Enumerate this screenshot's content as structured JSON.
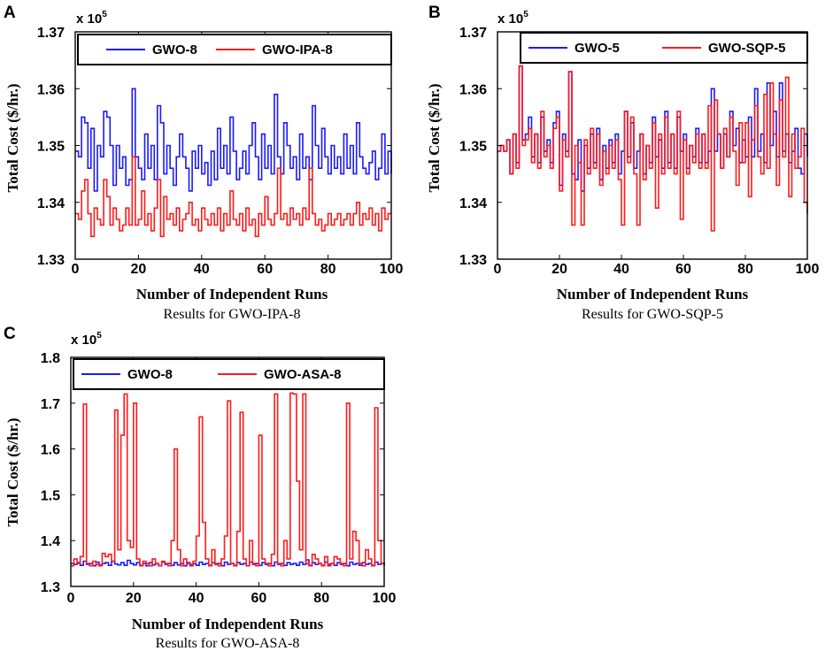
{
  "chart_data": [
    {
      "type": "line",
      "panel": "A",
      "multiplier_base": "x 10",
      "multiplier_exp": "5",
      "xlabel": "Number of Independent Runs",
      "ylabel": "Total Cost ($/hr.)",
      "caption": "Results for GWO-IPA-8",
      "xlim": [
        0,
        100
      ],
      "ylim": [
        1.33,
        1.37
      ],
      "xticks": [
        0,
        20,
        40,
        60,
        80,
        100
      ],
      "yticks": [
        1.33,
        1.34,
        1.35,
        1.36,
        1.37
      ],
      "ytick_labels": [
        "1.33",
        "1.34",
        "1.35",
        "1.36",
        "1.37"
      ],
      "series": [
        {
          "name": "GWO-8",
          "color": "#1a1aff",
          "values": [
            1.349,
            1.348,
            1.355,
            1.354,
            1.346,
            1.353,
            1.342,
            1.35,
            1.348,
            1.356,
            1.355,
            1.35,
            1.343,
            1.35,
            1.346,
            1.348,
            1.343,
            1.344,
            1.36,
            1.348,
            1.346,
            1.344,
            1.352,
            1.346,
            1.35,
            1.344,
            1.357,
            1.354,
            1.345,
            1.35,
            1.346,
            1.343,
            1.348,
            1.352,
            1.348,
            1.346,
            1.342,
            1.349,
            1.346,
            1.35,
            1.345,
            1.347,
            1.343,
            1.349,
            1.344,
            1.353,
            1.346,
            1.35,
            1.345,
            1.355,
            1.349,
            1.344,
            1.346,
            1.349,
            1.345,
            1.35,
            1.354,
            1.348,
            1.344,
            1.352,
            1.346,
            1.35,
            1.345,
            1.359,
            1.348,
            1.345,
            1.354,
            1.35,
            1.346,
            1.348,
            1.344,
            1.352,
            1.346,
            1.348,
            1.344,
            1.357,
            1.35,
            1.346,
            1.353,
            1.348,
            1.345,
            1.35,
            1.346,
            1.348,
            1.345,
            1.352,
            1.346,
            1.35,
            1.345,
            1.354,
            1.348,
            1.346,
            1.345,
            1.347,
            1.349,
            1.344,
            1.346,
            1.352,
            1.345,
            1.349,
            1.345
          ]
        },
        {
          "name": "GWO-IPA-8",
          "color": "#ff1a1a",
          "values": [
            1.338,
            1.337,
            1.342,
            1.344,
            1.338,
            1.334,
            1.339,
            1.337,
            1.336,
            1.344,
            1.341,
            1.336,
            1.339,
            1.337,
            1.335,
            1.336,
            1.339,
            1.336,
            1.348,
            1.336,
            1.337,
            1.342,
            1.336,
            1.338,
            1.335,
            1.339,
            1.344,
            1.334,
            1.341,
            1.337,
            1.338,
            1.336,
            1.339,
            1.335,
            1.337,
            1.338,
            1.34,
            1.336,
            1.337,
            1.335,
            1.339,
            1.337,
            1.336,
            1.338,
            1.336,
            1.339,
            1.335,
            1.338,
            1.336,
            1.342,
            1.337,
            1.336,
            1.338,
            1.335,
            1.339,
            1.336,
            1.337,
            1.334,
            1.338,
            1.336,
            1.341,
            1.337,
            1.336,
            1.338,
            1.346,
            1.337,
            1.338,
            1.336,
            1.339,
            1.337,
            1.338,
            1.336,
            1.339,
            1.337,
            1.346,
            1.338,
            1.336,
            1.337,
            1.335,
            1.336,
            1.338,
            1.336,
            1.337,
            1.338,
            1.336,
            1.337,
            1.338,
            1.336,
            1.338,
            1.34,
            1.336,
            1.338,
            1.337,
            1.339,
            1.336,
            1.338,
            1.335,
            1.339,
            1.337,
            1.338,
            1.338
          ]
        }
      ]
    },
    {
      "type": "line",
      "panel": "B",
      "multiplier_base": "x 10",
      "multiplier_exp": "5",
      "xlabel": "Number of Independent Runs",
      "ylabel": "Total Cost ($/hr.)",
      "caption": "Results for GWO-SQP-5",
      "xlim": [
        0,
        100
      ],
      "ylim": [
        1.33,
        1.37
      ],
      "xticks": [
        0,
        20,
        40,
        60,
        80,
        100
      ],
      "yticks": [
        1.33,
        1.34,
        1.35,
        1.36,
        1.37
      ],
      "ytick_labels": [
        "1.33",
        "1.34",
        "1.35",
        "1.36",
        "1.37"
      ],
      "series": [
        {
          "name": "GWO-5",
          "color": "#1a1aff",
          "values": [
            1.349,
            1.35,
            1.349,
            1.351,
            1.345,
            1.352,
            1.347,
            1.364,
            1.351,
            1.352,
            1.355,
            1.348,
            1.352,
            1.347,
            1.355,
            1.349,
            1.351,
            1.347,
            1.354,
            1.356,
            1.343,
            1.352,
            1.349,
            1.363,
            1.345,
            1.344,
            1.351,
            1.342,
            1.35,
            1.346,
            1.352,
            1.347,
            1.353,
            1.344,
            1.35,
            1.346,
            1.351,
            1.347,
            1.352,
            1.345,
            1.349,
            1.356,
            1.348,
            1.354,
            1.346,
            1.349,
            1.352,
            1.345,
            1.35,
            1.347,
            1.355,
            1.348,
            1.351,
            1.346,
            1.356,
            1.347,
            1.352,
            1.346,
            1.355,
            1.349,
            1.352,
            1.346,
            1.35,
            1.348,
            1.353,
            1.347,
            1.352,
            1.347,
            1.349,
            1.36,
            1.349,
            1.352,
            1.346,
            1.352,
            1.348,
            1.356,
            1.35,
            1.353,
            1.347,
            1.351,
            1.348,
            1.355,
            1.348,
            1.36,
            1.349,
            1.352,
            1.347,
            1.361,
            1.35,
            1.356,
            1.348,
            1.361,
            1.349,
            1.352,
            1.347,
            1.349,
            1.353,
            1.346,
            1.345,
            1.352,
            1.348
          ]
        },
        {
          "name": "GWO-SQP-5",
          "color": "#ff1a1a",
          "values": [
            1.349,
            1.35,
            1.349,
            1.351,
            1.345,
            1.352,
            1.346,
            1.364,
            1.35,
            1.351,
            1.353,
            1.347,
            1.352,
            1.346,
            1.356,
            1.348,
            1.35,
            1.346,
            1.353,
            1.355,
            1.342,
            1.351,
            1.348,
            1.363,
            1.336,
            1.35,
            1.347,
            1.336,
            1.351,
            1.345,
            1.353,
            1.346,
            1.352,
            1.343,
            1.349,
            1.345,
            1.35,
            1.346,
            1.351,
            1.344,
            1.336,
            1.356,
            1.347,
            1.355,
            1.345,
            1.336,
            1.352,
            1.344,
            1.35,
            1.346,
            1.354,
            1.339,
            1.352,
            1.345,
            1.355,
            1.346,
            1.352,
            1.345,
            1.356,
            1.337,
            1.351,
            1.345,
            1.35,
            1.347,
            1.352,
            1.346,
            1.352,
            1.346,
            1.357,
            1.335,
            1.358,
            1.352,
            1.346,
            1.353,
            1.348,
            1.355,
            1.349,
            1.343,
            1.354,
            1.347,
            1.354,
            1.341,
            1.351,
            1.357,
            1.348,
            1.345,
            1.359,
            1.346,
            1.361,
            1.352,
            1.343,
            1.358,
            1.348,
            1.362,
            1.341,
            1.352,
            1.346,
            1.348,
            1.353,
            1.34,
            1.338
          ]
        }
      ]
    },
    {
      "type": "line",
      "panel": "C",
      "multiplier_base": "x 10",
      "multiplier_exp": "5",
      "xlabel": "Number of Independent Runs",
      "ylabel": "Total Cost ($/hr.)",
      "caption": "Results for GWO-ASA-8",
      "xlim": [
        0,
        100
      ],
      "ylim": [
        1.3,
        1.8
      ],
      "xticks": [
        0,
        20,
        40,
        60,
        80,
        100
      ],
      "yticks": [
        1.3,
        1.4,
        1.5,
        1.6,
        1.7,
        1.8
      ],
      "ytick_labels": [
        "1.3",
        "1.4",
        "1.5",
        "1.6",
        "1.7",
        "1.8"
      ],
      "series": [
        {
          "name": "GWO-8",
          "color": "#1a1aff",
          "values": [
            1.35,
            1.348,
            1.352,
            1.346,
            1.355,
            1.348,
            1.35,
            1.345,
            1.353,
            1.347,
            1.35,
            1.352,
            1.346,
            1.355,
            1.349,
            1.347,
            1.352,
            1.346,
            1.357,
            1.35,
            1.347,
            1.352,
            1.346,
            1.35,
            1.345,
            1.352,
            1.347,
            1.35,
            1.345,
            1.353,
            1.348,
            1.35,
            1.346,
            1.352,
            1.347,
            1.35,
            1.345,
            1.352,
            1.348,
            1.35,
            1.346,
            1.353,
            1.348,
            1.35,
            1.346,
            1.352,
            1.348,
            1.35,
            1.345,
            1.353,
            1.348,
            1.35,
            1.346,
            1.352,
            1.348,
            1.35,
            1.345,
            1.353,
            1.348,
            1.35,
            1.346,
            1.352,
            1.348,
            1.35,
            1.345,
            1.353,
            1.348,
            1.35,
            1.346,
            1.352,
            1.348,
            1.35,
            1.346,
            1.353,
            1.348,
            1.358,
            1.346,
            1.352,
            1.348,
            1.35,
            1.346,
            1.353,
            1.348,
            1.35,
            1.346,
            1.352,
            1.348,
            1.35,
            1.345,
            1.353,
            1.348,
            1.35,
            1.346,
            1.352,
            1.348,
            1.35,
            1.346,
            1.353,
            1.348,
            1.35,
            1.346
          ]
        },
        {
          "name": "GWO-ASA-8",
          "color": "#ff1a1a",
          "values": [
            1.345,
            1.36,
            1.35,
            1.365,
            1.698,
            1.35,
            1.345,
            1.355,
            1.348,
            1.345,
            1.372,
            1.365,
            1.37,
            1.355,
            1.685,
            1.38,
            1.63,
            1.72,
            1.4,
            1.385,
            1.7,
            1.36,
            1.345,
            1.355,
            1.35,
            1.345,
            1.36,
            1.35,
            1.345,
            1.355,
            1.35,
            1.345,
            1.4,
            1.6,
            1.38,
            1.345,
            1.36,
            1.35,
            1.345,
            1.355,
            1.41,
            1.67,
            1.44,
            1.36,
            1.345,
            1.38,
            1.35,
            1.345,
            1.36,
            1.41,
            1.705,
            1.35,
            1.345,
            1.42,
            1.68,
            1.36,
            1.345,
            1.4,
            1.35,
            1.345,
            1.63,
            1.36,
            1.35,
            1.345,
            1.37,
            1.72,
            1.35,
            1.345,
            1.4,
            1.36,
            1.722,
            1.72,
            1.53,
            1.38,
            1.72,
            1.35,
            1.345,
            1.37,
            1.36,
            1.35,
            1.345,
            1.365,
            1.345,
            1.35,
            1.365,
            1.36,
            1.35,
            1.345,
            1.7,
            1.36,
            1.42,
            1.4,
            1.35,
            1.345,
            1.38,
            1.36,
            1.345,
            1.69,
            1.4,
            1.35,
            1.345
          ]
        }
      ]
    }
  ]
}
